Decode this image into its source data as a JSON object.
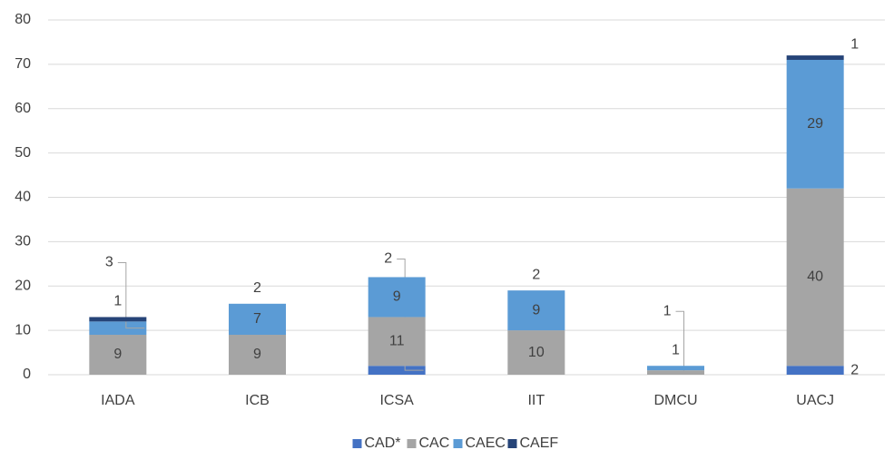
{
  "chart_data": {
    "type": "stacked_bar",
    "categories": [
      "IADA",
      "ICB",
      "ICSA",
      "IIT",
      "DMCU",
      "UACJ"
    ],
    "series": [
      {
        "name": "CAD*",
        "color": "#4472c4",
        "values": [
          0,
          0,
          2,
          0,
          0,
          2
        ]
      },
      {
        "name": "CAC",
        "color": "#a5a5a5",
        "values": [
          9,
          9,
          11,
          10,
          1,
          40
        ]
      },
      {
        "name": "CAEC",
        "color": "#5b9bd5",
        "values": [
          3,
          7,
          9,
          9,
          1,
          29
        ]
      },
      {
        "name": "CAEF",
        "color": "#264478",
        "values": [
          1,
          0,
          0,
          0,
          0,
          1
        ]
      }
    ],
    "annotations": [
      {
        "text": "2",
        "category": "ICB"
      },
      {
        "text": "2",
        "category": "IIT"
      }
    ],
    "ylim": [
      0,
      80
    ],
    "yticks": [
      0,
      10,
      20,
      30,
      40,
      50,
      60,
      70,
      80
    ],
    "grid": true,
    "legend": "bottom"
  }
}
